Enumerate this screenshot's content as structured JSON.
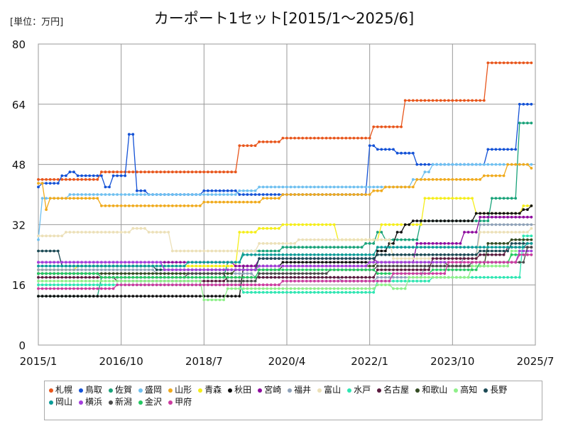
{
  "chart_data": {
    "type": "line",
    "title": "カーポート1セット[2015/1～2025/6]",
    "unit_label": "[単位：万円]",
    "x_ticks": [
      {
        "label": "2015/1",
        "m": 0
      },
      {
        "label": "2016/10",
        "m": 21
      },
      {
        "label": "2018/7",
        "m": 42
      },
      {
        "label": "2020/4",
        "m": 63
      },
      {
        "label": "2022/1",
        "m": 84
      },
      {
        "label": "2023/10",
        "m": 105
      },
      {
        "label": "2025/7",
        "m": 126
      }
    ],
    "x_range_months": [
      0,
      126
    ],
    "last_month_index": 125,
    "y_ticks": [
      0,
      16,
      32,
      48,
      64,
      80
    ],
    "ylim": [
      0,
      80
    ],
    "grid": true,
    "legend_position": "bottom",
    "series": [
      {
        "name": "札幌",
        "color": "#e8561c",
        "steps": [
          [
            0,
            44
          ],
          [
            16,
            46
          ],
          [
            51,
            53
          ],
          [
            56,
            54
          ],
          [
            62,
            55
          ],
          [
            85,
            58
          ],
          [
            93,
            65
          ],
          [
            114,
            75
          ]
        ]
      },
      {
        "name": "鳥取",
        "color": "#1452d6",
        "steps": [
          [
            0,
            42
          ],
          [
            1,
            43
          ],
          [
            6,
            45
          ],
          [
            8,
            46
          ],
          [
            10,
            45
          ],
          [
            17,
            42
          ],
          [
            19,
            45
          ],
          [
            23,
            56
          ],
          [
            25,
            41
          ],
          [
            28,
            40
          ],
          [
            42,
            41
          ],
          [
            51,
            40
          ],
          [
            84,
            53
          ],
          [
            86,
            52
          ],
          [
            91,
            51
          ],
          [
            96,
            48
          ],
          [
            114,
            52
          ],
          [
            122,
            64
          ]
        ]
      },
      {
        "name": "佐賀",
        "color": "#1aa37a",
        "steps": [
          [
            0,
            13
          ],
          [
            16,
            18
          ],
          [
            48,
            22
          ],
          [
            52,
            25
          ],
          [
            62,
            26
          ],
          [
            83,
            27
          ],
          [
            86,
            30
          ],
          [
            88,
            28
          ],
          [
            97,
            33
          ],
          [
            115,
            39
          ],
          [
            122,
            59
          ]
        ]
      },
      {
        "name": "盛岡",
        "color": "#6fc0f0",
        "steps": [
          [
            0,
            28
          ],
          [
            1,
            39
          ],
          [
            8,
            40
          ],
          [
            42,
            40
          ],
          [
            51,
            41
          ],
          [
            56,
            42
          ],
          [
            90,
            42
          ],
          [
            95,
            44
          ],
          [
            98,
            46
          ],
          [
            100,
            48
          ]
        ]
      },
      {
        "name": "山形",
        "color": "#f0aa1c",
        "steps": [
          [
            0,
            43
          ],
          [
            2,
            36
          ],
          [
            3,
            39
          ],
          [
            8,
            39
          ],
          [
            16,
            37
          ],
          [
            42,
            38
          ],
          [
            57,
            39
          ],
          [
            62,
            40
          ],
          [
            85,
            41
          ],
          [
            88,
            42
          ],
          [
            96,
            44
          ],
          [
            113,
            45
          ],
          [
            119,
            48
          ],
          [
            123,
            48
          ],
          [
            125,
            47
          ]
        ]
      },
      {
        "name": "青森",
        "color": "#f5ee1a",
        "steps": [
          [
            0,
            20
          ],
          [
            10,
            21
          ],
          [
            51,
            30
          ],
          [
            56,
            31
          ],
          [
            62,
            32
          ],
          [
            76,
            28
          ],
          [
            87,
            32
          ],
          [
            98,
            39
          ],
          [
            111,
            35
          ],
          [
            123,
            37
          ]
        ]
      },
      {
        "name": "秋田",
        "color": "#111111",
        "steps": [
          [
            0,
            13
          ],
          [
            52,
            21
          ],
          [
            62,
            22
          ],
          [
            76,
            22
          ],
          [
            86,
            25
          ],
          [
            89,
            27
          ],
          [
            91,
            30
          ],
          [
            93,
            32
          ],
          [
            95,
            33
          ],
          [
            111,
            35
          ],
          [
            123,
            36
          ],
          [
            125,
            37
          ]
        ]
      },
      {
        "name": "宮崎",
        "color": "#8e0c9e",
        "steps": [
          [
            0,
            22
          ],
          [
            50,
            21
          ],
          [
            56,
            23
          ],
          [
            86,
            22
          ],
          [
            96,
            27
          ],
          [
            108,
            30
          ],
          [
            112,
            34
          ],
          [
            125,
            34
          ]
        ]
      },
      {
        "name": "福井",
        "color": "#8fa2b8",
        "steps": [
          [
            0,
            20
          ],
          [
            30,
            19
          ],
          [
            55,
            18
          ],
          [
            77,
            17
          ],
          [
            86,
            18
          ],
          [
            98,
            21
          ],
          [
            108,
            24
          ],
          [
            112,
            32
          ],
          [
            125,
            32
          ]
        ]
      },
      {
        "name": "富山",
        "color": "#ece0b8",
        "steps": [
          [
            0,
            29
          ],
          [
            7,
            30
          ],
          [
            24,
            31
          ],
          [
            28,
            30
          ],
          [
            34,
            25
          ],
          [
            56,
            27
          ],
          [
            66,
            28
          ],
          [
            90,
            23
          ],
          [
            112,
            30
          ],
          [
            125,
            31
          ]
        ]
      },
      {
        "name": "水戸",
        "color": "#2ee6b2",
        "steps": [
          [
            0,
            16
          ],
          [
            52,
            14
          ],
          [
            86,
            17
          ],
          [
            100,
            18
          ],
          [
            112,
            18
          ],
          [
            123,
            29
          ]
        ]
      },
      {
        "name": "名古屋",
        "color": "#5a1a3e",
        "steps": [
          [
            0,
            18
          ],
          [
            20,
            17
          ],
          [
            48,
            18
          ],
          [
            64,
            18
          ],
          [
            86,
            20
          ],
          [
            100,
            23
          ],
          [
            112,
            24
          ],
          [
            119,
            26
          ]
        ]
      },
      {
        "name": "和歌山",
        "color": "#334b22",
        "steps": [
          [
            0,
            19
          ],
          [
            50,
            20
          ],
          [
            62,
            21
          ],
          [
            86,
            22
          ],
          [
            104,
            21
          ],
          [
            114,
            27
          ],
          [
            120,
            28
          ]
        ]
      },
      {
        "name": "高知",
        "color": "#8ff08a",
        "steps": [
          [
            0,
            17
          ],
          [
            42,
            12
          ],
          [
            48,
            15
          ],
          [
            86,
            16
          ],
          [
            90,
            15
          ],
          [
            94,
            18
          ],
          [
            110,
            21
          ],
          [
            120,
            25
          ]
        ]
      },
      {
        "name": "長野",
        "color": "#1c4a55",
        "steps": [
          [
            0,
            25
          ],
          [
            6,
            21
          ],
          [
            30,
            20
          ],
          [
            56,
            23
          ],
          [
            86,
            24
          ],
          [
            100,
            24
          ],
          [
            112,
            25
          ],
          [
            120,
            27
          ]
        ]
      },
      {
        "name": "岡山",
        "color": "#0a9c98",
        "steps": [
          [
            0,
            21
          ],
          [
            38,
            22
          ],
          [
            52,
            24
          ],
          [
            86,
            26
          ],
          [
            110,
            26
          ],
          [
            124,
            27
          ]
        ]
      },
      {
        "name": "横浜",
        "color": "#a43fdc",
        "steps": [
          [
            0,
            22
          ],
          [
            32,
            20
          ],
          [
            56,
            21
          ],
          [
            84,
            22
          ],
          [
            100,
            22
          ],
          [
            116,
            22
          ],
          [
            122,
            25
          ]
        ]
      },
      {
        "name": "新潟",
        "color": "#4a4a4a",
        "steps": [
          [
            0,
            19
          ],
          [
            16,
            18
          ],
          [
            38,
            19
          ],
          [
            48,
            17
          ],
          [
            56,
            19
          ],
          [
            74,
            20
          ],
          [
            86,
            21
          ],
          [
            110,
            22
          ],
          [
            124,
            26
          ]
        ]
      },
      {
        "name": "金沢",
        "color": "#25c762",
        "steps": [
          [
            0,
            19
          ],
          [
            16,
            18
          ],
          [
            42,
            18
          ],
          [
            56,
            20
          ],
          [
            86,
            19
          ],
          [
            100,
            20
          ],
          [
            112,
            22
          ],
          [
            120,
            24
          ]
        ]
      },
      {
        "name": "甲府",
        "color": "#cc3ca0",
        "steps": [
          [
            0,
            15
          ],
          [
            20,
            16
          ],
          [
            50,
            16
          ],
          [
            62,
            17
          ],
          [
            80,
            17
          ],
          [
            90,
            19
          ],
          [
            104,
            22
          ],
          [
            122,
            24
          ]
        ]
      }
    ]
  }
}
